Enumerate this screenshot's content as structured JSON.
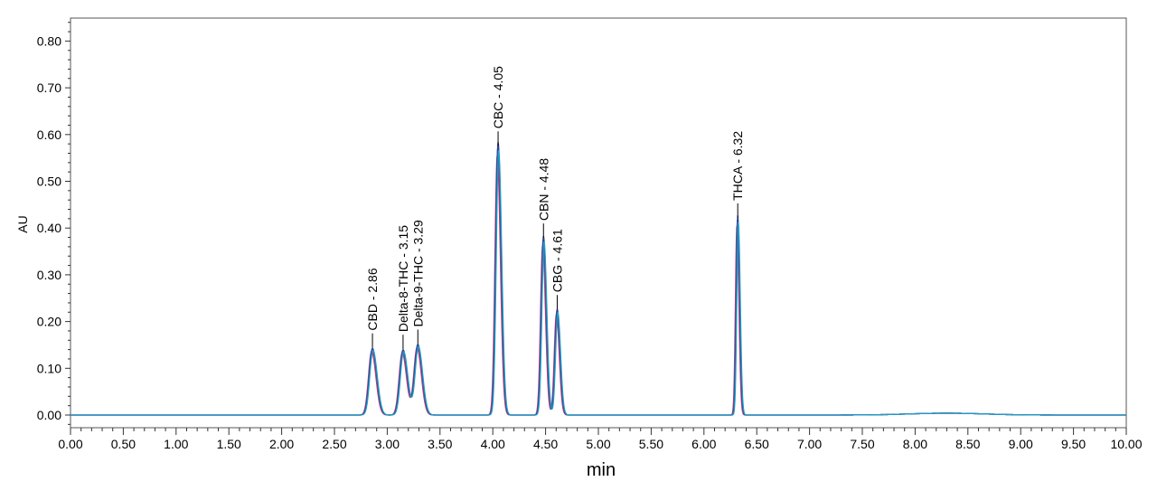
{
  "chart_data": {
    "type": "line",
    "title": "",
    "xlabel": "min",
    "ylabel": "AU",
    "xlim": [
      0,
      10
    ],
    "ylim": [
      -0.03,
      0.85
    ],
    "grid": false,
    "x_ticks": [
      "0.00",
      "0.50",
      "1.00",
      "1.50",
      "2.00",
      "2.50",
      "3.00",
      "3.50",
      "4.00",
      "4.50",
      "5.00",
      "5.50",
      "6.00",
      "6.50",
      "7.00",
      "7.50",
      "8.00",
      "8.50",
      "9.00",
      "9.50",
      "10.00"
    ],
    "y_ticks": [
      "0.00",
      "0.10",
      "0.20",
      "0.30",
      "0.40",
      "0.50",
      "0.60",
      "0.70",
      "0.80"
    ],
    "series_colors": [
      "#cc3366",
      "#7b52a8",
      "#2f3f8f",
      "#1aa0c8"
    ],
    "peaks": [
      {
        "label": "CBD - 2.86",
        "rt": 2.86,
        "height": 0.14,
        "width": 0.03
      },
      {
        "label": "Delta-8-THC - 3.15",
        "rt": 3.15,
        "height": 0.137,
        "width": 0.03
      },
      {
        "label": "Delta-9-THC - 3.29",
        "rt": 3.29,
        "height": 0.148,
        "width": 0.03
      },
      {
        "label": "CBC - 4.05",
        "rt": 4.05,
        "height": 0.572,
        "width": 0.022
      },
      {
        "label": "CBN - 4.48",
        "rt": 4.48,
        "height": 0.375,
        "width": 0.02
      },
      {
        "label": "CBG - 4.61",
        "rt": 4.61,
        "height": 0.222,
        "width": 0.02
      },
      {
        "label": "THCA - 6.32",
        "rt": 6.32,
        "height": 0.418,
        "width": 0.014
      }
    ],
    "baseline_bump": {
      "center": 8.3,
      "height": 0.004,
      "width": 0.35
    }
  }
}
